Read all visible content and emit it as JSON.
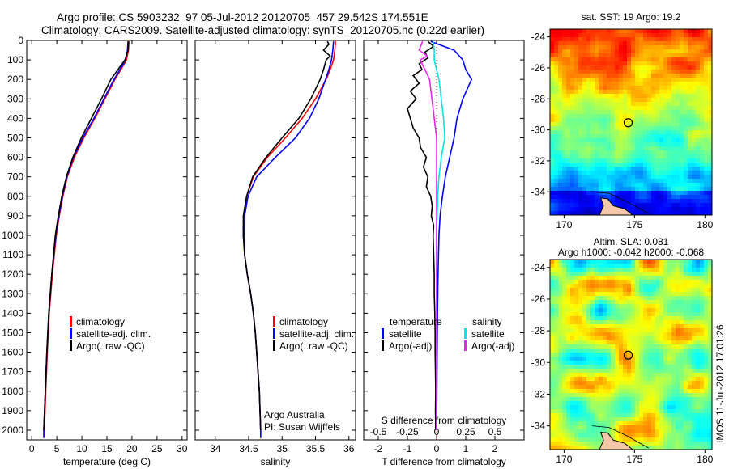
{
  "header": {
    "line1": "Argo profile: CS 5903232_97 05-Jul-2012 20120705_457 29.542S 174.551E",
    "line2": "Climatology: CARS2009. Satellite-adjusted climatology: synTS_20120705.nc (0.22d earlier)"
  },
  "side_stamp": "IMOS 11-Jul-2012 17:01:26",
  "colors": {
    "climatology": "#ff0000",
    "satellite": "#0000ff",
    "argo": "#000000",
    "sal_satellite": "#00e5e5",
    "sal_argo": "#ee22ee",
    "land": "#f4c8a8"
  },
  "chart_data": [
    {
      "id": "temperature",
      "type": "line",
      "xlabel": "temperature (deg C)",
      "ylabel": "",
      "xlim": [
        -1,
        31
      ],
      "ylim": [
        2050,
        0
      ],
      "xticks": [
        0,
        5,
        10,
        15,
        20,
        25,
        30
      ],
      "yticks": [
        0,
        100,
        200,
        300,
        400,
        500,
        600,
        700,
        800,
        900,
        1000,
        1100,
        1200,
        1300,
        1400,
        1500,
        1600,
        1700,
        1800,
        1900,
        2000
      ],
      "legend": [
        "climatology",
        "satellite-adj. clim.",
        "Argo(..raw -QC)"
      ],
      "series": [
        {
          "name": "climatology",
          "color": "#ff0000",
          "depth": [
            5,
            50,
            100,
            150,
            200,
            300,
            400,
            500,
            600,
            700,
            800,
            900,
            1000,
            1200,
            1400,
            1600,
            1800,
            2000,
            2040
          ],
          "values": [
            19.4,
            19.3,
            18.9,
            17.8,
            16.6,
            14.6,
            12.6,
            10.4,
            8.5,
            7.1,
            6.2,
            5.5,
            4.9,
            4.1,
            3.5,
            3.1,
            2.8,
            2.5,
            2.5
          ]
        },
        {
          "name": "satellite-adj. clim.",
          "color": "#0000ff",
          "depth": [
            5,
            50,
            100,
            150,
            200,
            300,
            400,
            500,
            600,
            700,
            800,
            900,
            1000,
            1200,
            1400,
            1600,
            1800,
            2000,
            2040
          ],
          "values": [
            19.2,
            19.1,
            18.7,
            17.6,
            16.4,
            14.4,
            12.4,
            10.2,
            8.3,
            7.0,
            6.1,
            5.4,
            4.8,
            4.0,
            3.4,
            3.0,
            2.7,
            2.4,
            2.4
          ]
        },
        {
          "name": "Argo(..raw -QC)",
          "color": "#000000",
          "depth": [
            5,
            50,
            100,
            150,
            200,
            300,
            400,
            500,
            600,
            700,
            800,
            900,
            1000,
            1200,
            1400,
            1600,
            1800,
            2000
          ],
          "values": [
            19.3,
            19.2,
            18.6,
            17.2,
            15.8,
            13.9,
            11.9,
            9.9,
            8.2,
            6.9,
            6.0,
            5.3,
            4.7,
            4.0,
            3.4,
            3.0,
            2.7,
            2.4
          ]
        }
      ]
    },
    {
      "id": "salinity",
      "type": "line",
      "xlabel": "salinity",
      "ylabel": "",
      "xlim": [
        33.7,
        36.1
      ],
      "ylim": [
        2050,
        0
      ],
      "xticks": [
        34,
        34.5,
        35,
        35.5,
        36
      ],
      "legend": [
        "climatology",
        "satellite-adj. clim.",
        "Argo(..raw -QC)"
      ],
      "annotation": [
        "Argo Australia",
        "PI: Susan Wijffels"
      ],
      "series": [
        {
          "name": "climatology",
          "color": "#ff0000",
          "depth": [
            5,
            50,
            100,
            150,
            200,
            300,
            400,
            500,
            600,
            700,
            800,
            900,
            1000,
            1100,
            1200,
            1300,
            1400,
            1500,
            1600,
            1800,
            2000,
            2040
          ],
          "values": [
            35.8,
            35.79,
            35.77,
            35.72,
            35.66,
            35.5,
            35.3,
            35.05,
            34.78,
            34.57,
            34.47,
            34.43,
            34.42,
            34.44,
            34.48,
            34.53,
            34.57,
            34.6,
            34.62,
            34.66,
            34.68,
            34.68
          ]
        },
        {
          "name": "satellite-adj. clim.",
          "color": "#0000ff",
          "depth": [
            5,
            50,
            100,
            150,
            200,
            300,
            400,
            500,
            600,
            700,
            800,
            900,
            1000,
            1100,
            1200,
            1300,
            1400,
            1500,
            1600,
            1800,
            2000,
            2040
          ],
          "values": [
            35.77,
            35.76,
            35.74,
            35.7,
            35.65,
            35.55,
            35.41,
            35.2,
            34.9,
            34.62,
            34.49,
            34.44,
            34.43,
            34.44,
            34.48,
            34.53,
            34.57,
            34.6,
            34.62,
            34.66,
            34.68,
            34.68
          ]
        },
        {
          "name": "Argo(..raw -QC)",
          "color": "#000000",
          "depth": [
            5,
            20,
            50,
            80,
            100,
            150,
            200,
            300,
            400,
            500,
            600,
            700,
            800,
            900,
            1000,
            1100,
            1200,
            1300,
            1400,
            1500,
            1600,
            1800,
            2000
          ],
          "values": [
            35.68,
            35.7,
            35.62,
            35.72,
            35.66,
            35.62,
            35.57,
            35.43,
            35.25,
            35.0,
            34.76,
            34.56,
            34.47,
            34.42,
            34.42,
            34.44,
            34.48,
            34.53,
            34.57,
            34.6,
            34.62,
            34.66,
            34.68
          ]
        }
      ]
    },
    {
      "id": "difference",
      "type": "line",
      "xlabel": "T difference from climatology",
      "xlabel2": "S difference from climatology",
      "xlim": [
        -2.5,
        3
      ],
      "ylim": [
        2050,
        0
      ],
      "xticks": [
        -2,
        -1,
        0,
        1,
        2
      ],
      "sticks": [
        -0.5,
        -0.25,
        0,
        0.25,
        0.5
      ],
      "s_scale": 4,
      "legend_titles": [
        "temperature",
        "salinity"
      ],
      "legend": [
        "satellite",
        "Argo(-adj)",
        "satellite",
        "Argo(-adj)"
      ],
      "series": [
        {
          "name": "satellite",
          "kind": "T",
          "color": "#0000ff",
          "depth": [
            5,
            50,
            100,
            150,
            200,
            300,
            400,
            500,
            600,
            700,
            800,
            900,
            1000,
            1200,
            1400,
            1600,
            1800,
            2000
          ],
          "values": [
            -0.2,
            0.6,
            0.9,
            1.0,
            1.2,
            0.9,
            0.7,
            0.6,
            0.45,
            0.3,
            0.2,
            0.12,
            0.08,
            0.05,
            0.03,
            0.02,
            0.01,
            0.0
          ]
        },
        {
          "name": "Argo(-adj)",
          "kind": "T",
          "color": "#000000",
          "depth": [
            5,
            30,
            60,
            90,
            120,
            150,
            180,
            220,
            260,
            300,
            350,
            400,
            450,
            500,
            550,
            600,
            650,
            700,
            750,
            800,
            850,
            900,
            950,
            1000,
            1100,
            1200,
            1300,
            1400,
            1500,
            1600,
            1700,
            1800,
            1900,
            2000
          ],
          "values": [
            -0.3,
            -0.1,
            -0.4,
            -0.3,
            -0.6,
            -0.5,
            -0.8,
            -0.6,
            -0.9,
            -0.7,
            -1.0,
            -0.9,
            -0.8,
            -0.6,
            -0.55,
            -0.35,
            -0.45,
            -0.3,
            -0.35,
            -0.2,
            -0.15,
            -0.18,
            -0.1,
            -0.12,
            -0.1,
            -0.08,
            -0.08,
            -0.06,
            -0.05,
            -0.05,
            -0.04,
            -0.03,
            -0.04,
            -0.03
          ]
        },
        {
          "name": "satellite",
          "kind": "S",
          "color": "#00e5e5",
          "depth": [
            5,
            50,
            100,
            150,
            200,
            300,
            400,
            500,
            600,
            700,
            800,
            900,
            1000,
            1200,
            1400,
            1600,
            1800,
            2000
          ],
          "values": [
            -0.03,
            -0.02,
            -0.02,
            0.0,
            0.02,
            0.04,
            0.06,
            0.07,
            0.04,
            0.02,
            0.01,
            0.005,
            0.0,
            0.0,
            0.0,
            0.0,
            0.0,
            0.0
          ]
        },
        {
          "name": "Argo(-adj)",
          "kind": "S",
          "color": "#ee22ee",
          "depth": [
            5,
            50,
            80,
            100,
            150,
            200,
            250,
            300,
            350,
            400,
            500,
            600,
            700,
            800,
            900,
            1000,
            1200,
            1400,
            1600,
            1800,
            2000
          ],
          "values": [
            -0.12,
            -0.15,
            -0.08,
            -0.14,
            -0.1,
            -0.06,
            -0.05,
            -0.04,
            -0.03,
            -0.02,
            0.0,
            0.0,
            0.0,
            0.0,
            0.0,
            0.0,
            0.0,
            0.0,
            0.0,
            0.0,
            0.0
          ]
        }
      ]
    },
    {
      "id": "sst-map",
      "type": "heatmap",
      "title": "sat. SST: 19 Argo: 19.2",
      "xlim": [
        169,
        180.5
      ],
      "ylim": [
        -35.5,
        -23.5
      ],
      "xticks": [
        170,
        175,
        180
      ],
      "yticks": [
        -24,
        -26,
        -28,
        -30,
        -32,
        -34
      ],
      "marker": {
        "lon": 174.55,
        "lat": -29.54
      }
    },
    {
      "id": "sla-map",
      "type": "heatmap",
      "title": "Altim. SLA: 0.081",
      "subtitle": "Argo h1000: -0.042 h2000: -0.068",
      "xlim": [
        169,
        180.5
      ],
      "ylim": [
        -35.5,
        -23.5
      ],
      "xticks": [
        170,
        175,
        180
      ],
      "yticks": [
        -24,
        -26,
        -28,
        -30,
        -32,
        -34
      ],
      "marker": {
        "lon": 174.55,
        "lat": -29.54
      }
    }
  ]
}
